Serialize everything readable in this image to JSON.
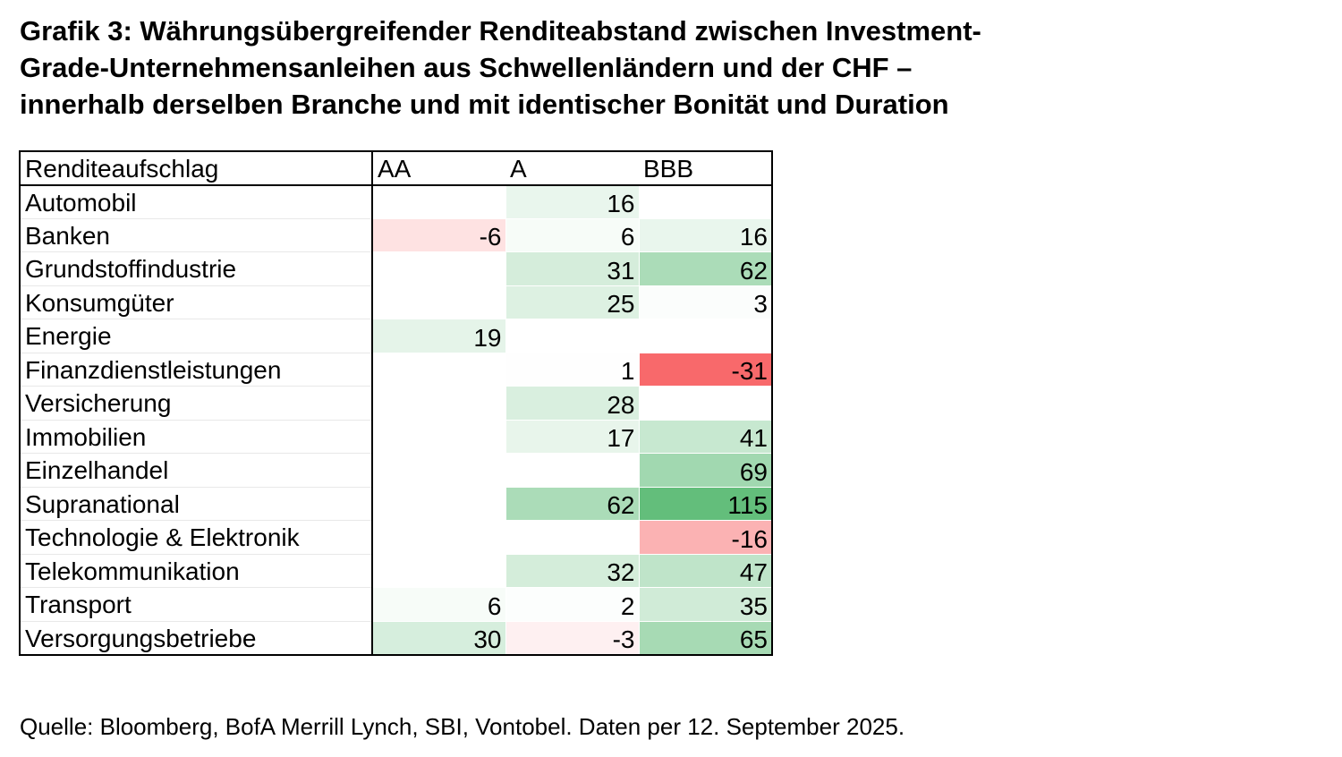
{
  "title_lines": [
    "Grafik 3: Währungsübergreifender Renditeabstand zwischen Investment-",
    "Grade-Unternehmensanleihen aus Schwellenländern und der CHF –",
    "innerhalb derselben Branche und mit identischer Bonität und Duration"
  ],
  "source": "Quelle: Bloomberg, BofA Merrill Lynch, SBI, Vontobel. Daten per 12. September 2025.",
  "colors": {
    "positive_max": "#63be7b",
    "negative_max": "#f8696b",
    "neutral": "#ffffff"
  },
  "chart_data": {
    "type": "heatmap",
    "corner_label": "Renditeaufschlag",
    "columns": [
      "AA",
      "A",
      "BBB"
    ],
    "rows": [
      {
        "label": "Automobil",
        "values": [
          null,
          16,
          null
        ]
      },
      {
        "label": "Banken",
        "values": [
          -6,
          6,
          16
        ]
      },
      {
        "label": "Grundstoffindustrie",
        "values": [
          null,
          31,
          62
        ]
      },
      {
        "label": "Konsumgüter",
        "values": [
          null,
          25,
          3
        ]
      },
      {
        "label": "Energie",
        "values": [
          19,
          null,
          null
        ]
      },
      {
        "label": "Finanzdienstleistungen",
        "values": [
          null,
          1,
          -31
        ]
      },
      {
        "label": "Versicherung",
        "values": [
          null,
          28,
          null
        ]
      },
      {
        "label": "Immobilien",
        "values": [
          null,
          17,
          41
        ]
      },
      {
        "label": "Einzelhandel",
        "values": [
          null,
          null,
          69
        ]
      },
      {
        "label": "Supranational",
        "values": [
          null,
          62,
          115
        ]
      },
      {
        "label": "Technologie & Elektronik",
        "values": [
          null,
          null,
          -16
        ]
      },
      {
        "label": "Telekommunikation",
        "values": [
          null,
          32,
          47
        ]
      },
      {
        "label": "Transport",
        "values": [
          6,
          2,
          35
        ]
      },
      {
        "label": "Versorgungsbetriebe",
        "values": [
          30,
          -3,
          65
        ]
      }
    ]
  }
}
